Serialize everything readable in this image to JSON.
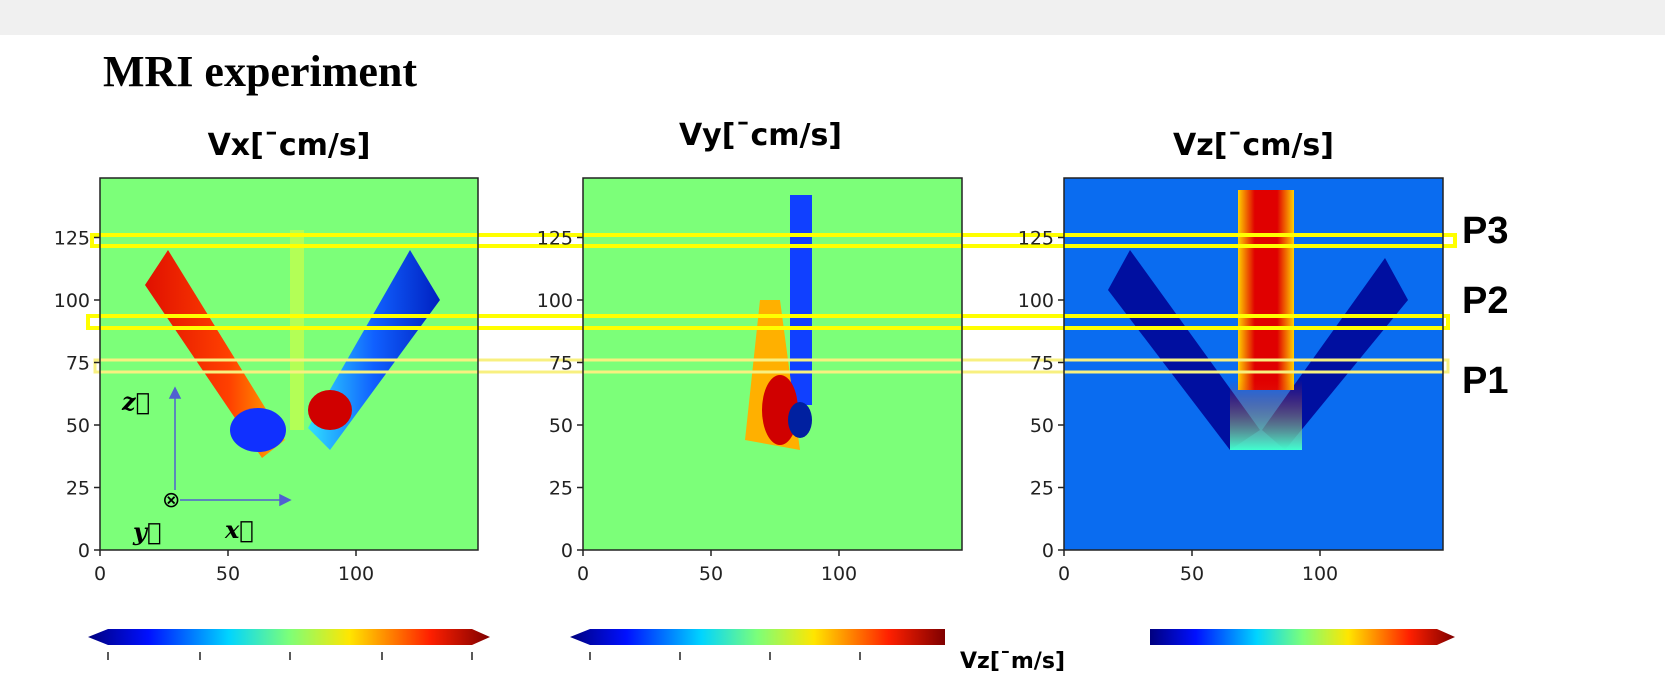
{
  "header": {
    "title": "MRI experiment"
  },
  "panels": [
    {
      "title": "Vx[¯cm/s]",
      "yticks": [
        0,
        25,
        50,
        75,
        100,
        125
      ],
      "xticks": [
        0,
        50,
        100
      ]
    },
    {
      "title": "Vy[¯cm/s]",
      "yticks": [
        0,
        25,
        50,
        75,
        100,
        125
      ],
      "xticks": [
        0,
        50,
        100
      ]
    },
    {
      "title": "Vz[¯cm/s]",
      "yticks": [
        0,
        25,
        50,
        75,
        100,
        125
      ],
      "xticks": [
        0,
        50,
        100
      ]
    }
  ],
  "axes_icon": {
    "z": "z⃗",
    "y": "y⃗",
    "x": "x⃗",
    "out": "⊗"
  },
  "profiles": [
    "P3",
    "P2",
    "P1"
  ],
  "colorbar_label": "Vz[¯m/s]"
}
